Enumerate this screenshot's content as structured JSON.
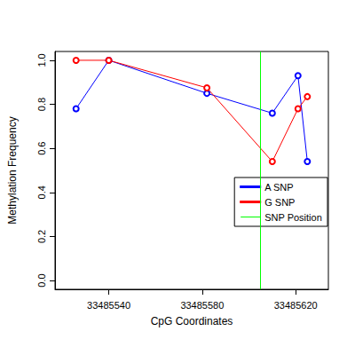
{
  "chart_data": {
    "type": "line",
    "x_label": "CpG Coordinates",
    "y_label": "Methylation Frequency",
    "series": [
      {
        "name": "A SNP",
        "color": "#0000ff",
        "marker": "circle",
        "x": [
          33485526,
          33485540,
          33485582,
          33485610,
          33485621,
          33485625
        ],
        "values": [
          0.78,
          1.0,
          0.85,
          0.76,
          0.93,
          0.54
        ]
      },
      {
        "name": "G SNP",
        "color": "#ff0000",
        "marker": "circle",
        "x": [
          33485526,
          33485540,
          33485582,
          33485610,
          33485621,
          33485625
        ],
        "values": [
          1.0,
          1.0,
          0.875,
          0.54,
          0.78,
          0.835
        ]
      }
    ],
    "snp_line": {
      "name": "SNP Position",
      "color": "#00ff00",
      "x": 33485605
    },
    "xlim": [
      33485517,
      33485634
    ],
    "xticks": [
      33485540,
      33485580,
      33485620
    ],
    "ylim": [
      -0.04,
      1.04
    ],
    "yticks": [
      {
        "value": 0,
        "label": "0.0"
      },
      0.2,
      0.4,
      0.6,
      0.8,
      {
        "value": 1,
        "label": "1.0"
      }
    ],
    "grid": false,
    "legend": "right"
  }
}
